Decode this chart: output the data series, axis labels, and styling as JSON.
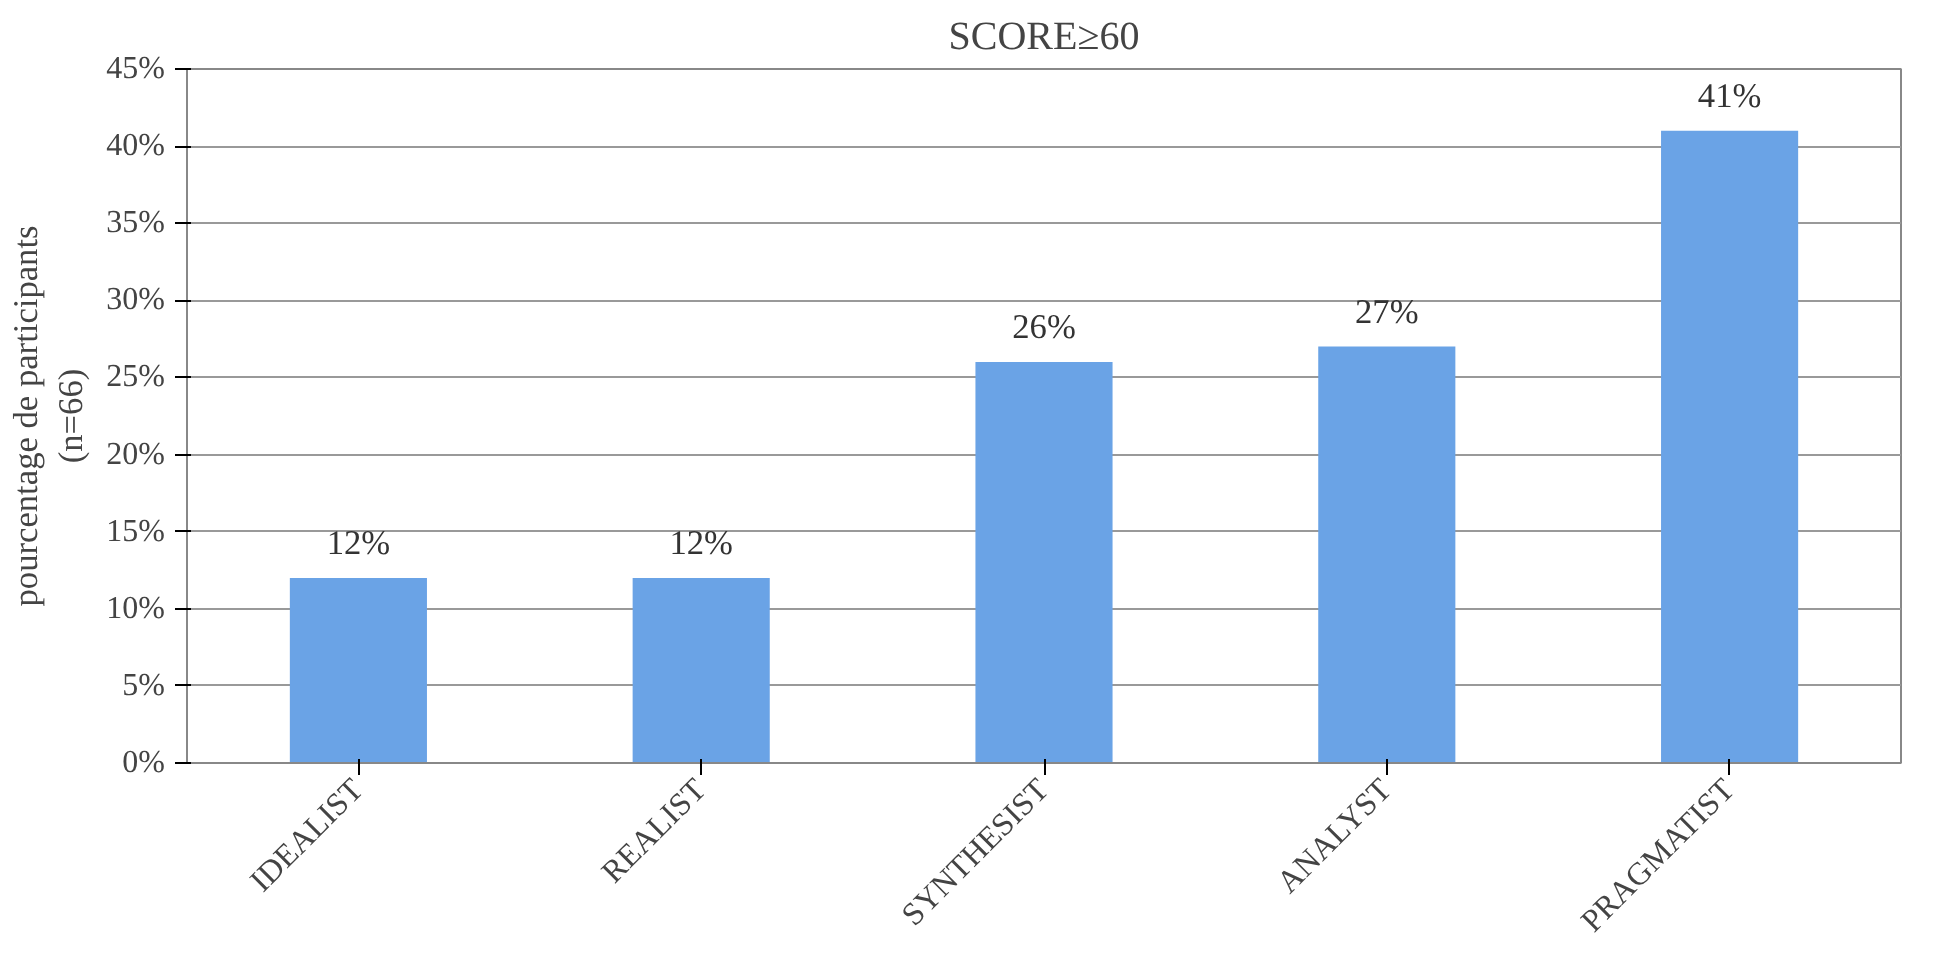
{
  "chart_data": {
    "type": "bar",
    "title": "SCORE≥60",
    "ylabel": "pourcentage de participants\n(n=66)",
    "categories": [
      "IDEALIST",
      "REALIST",
      "SYNTHESIST",
      "ANALYST",
      "PRAGMATIST"
    ],
    "values": [
      12,
      12,
      26,
      27,
      41
    ],
    "value_labels": [
      "12%",
      "12%",
      "26%",
      "27%",
      "41%"
    ],
    "color": "#6aa3e6",
    "ylim": [
      0,
      45
    ],
    "yticks": [
      {
        "value": 0,
        "label": "0%"
      },
      {
        "value": 5,
        "label": "5%"
      },
      {
        "value": 10,
        "label": "10%"
      },
      {
        "value": 15,
        "label": "15%"
      },
      {
        "value": 20,
        "label": "20%"
      },
      {
        "value": 25,
        "label": "25%"
      },
      {
        "value": 30,
        "label": "30%"
      },
      {
        "value": 35,
        "label": "35%"
      },
      {
        "value": 40,
        "label": "40%"
      },
      {
        "value": 45,
        "label": "45%"
      }
    ],
    "grid": "y"
  }
}
